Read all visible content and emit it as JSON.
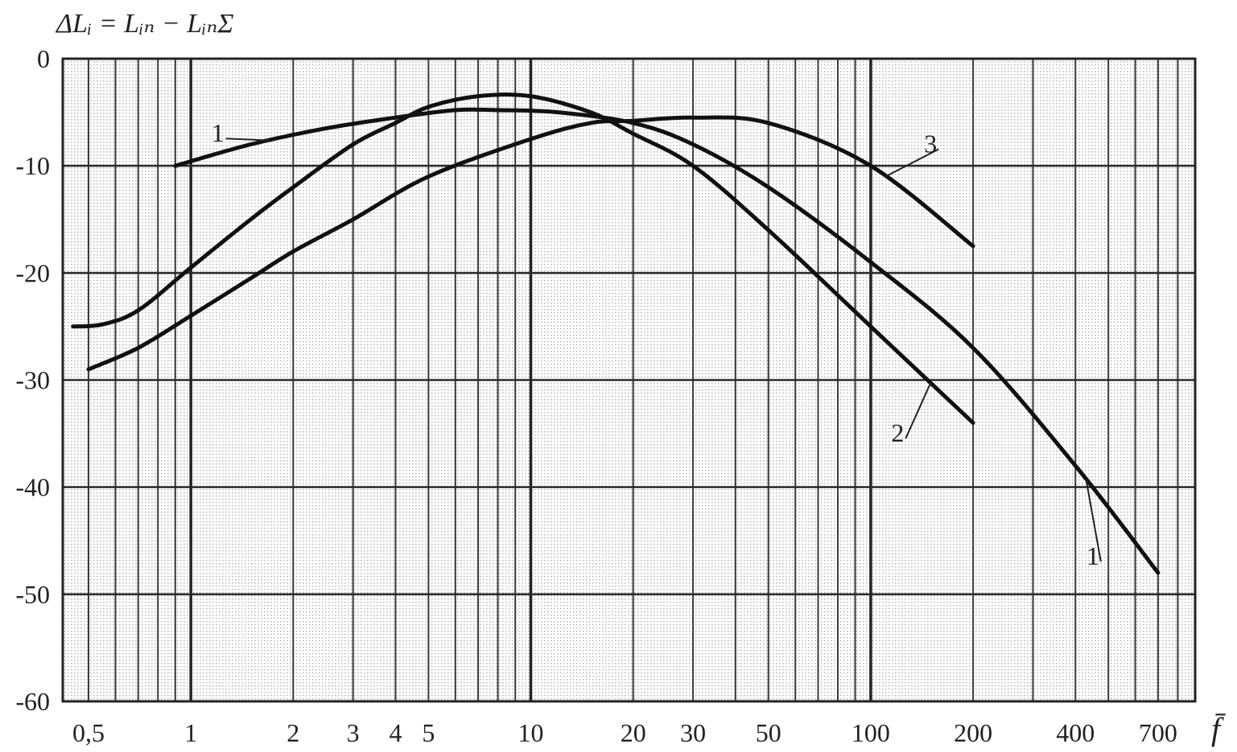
{
  "chart_data": {
    "type": "line",
    "ylabel": "ΔLᵢ = Lᵢₙ − LᵢₙΣ",
    "xlabel": "f̄",
    "x_scale": "log",
    "xlim": [
      0.42,
      900
    ],
    "ylim": [
      -60,
      0
    ],
    "grid": true,
    "x_ticks": [
      {
        "value": 0.5,
        "label": "0,5"
      },
      {
        "value": 1,
        "label": "1"
      },
      {
        "value": 2,
        "label": "2"
      },
      {
        "value": 3,
        "label": "3"
      },
      {
        "value": 4,
        "label": "4"
      },
      {
        "value": 5,
        "label": "5"
      },
      {
        "value": 10,
        "label": "10"
      },
      {
        "value": 20,
        "label": "20"
      },
      {
        "value": 30,
        "label": "30"
      },
      {
        "value": 50,
        "label": "50"
      },
      {
        "value": 100,
        "label": "100"
      },
      {
        "value": 200,
        "label": "200"
      },
      {
        "value": 400,
        "label": "400"
      },
      {
        "value": 700,
        "label": "700"
      }
    ],
    "y_ticks": [
      {
        "value": 0,
        "label": "0"
      },
      {
        "value": -10,
        "label": "-10"
      },
      {
        "value": -20,
        "label": "-20"
      },
      {
        "value": -30,
        "label": "-30"
      },
      {
        "value": -40,
        "label": "-40"
      },
      {
        "value": -50,
        "label": "-50"
      },
      {
        "value": -60,
        "label": "-60"
      }
    ],
    "series": [
      {
        "name": "1",
        "x": [
          0.9,
          1.5,
          2.5,
          4,
          6,
          8,
          12,
          20,
          30,
          50,
          100,
          200,
          400,
          700
        ],
        "y": [
          -10,
          -8,
          -6.5,
          -5.5,
          -4.8,
          -4.8,
          -5,
          -6,
          -8,
          -12,
          -19,
          -27,
          -38,
          -48
        ]
      },
      {
        "name": "2",
        "x": [
          0.45,
          0.55,
          0.7,
          1,
          1.5,
          2,
          3,
          4,
          5,
          7,
          10,
          15,
          20,
          30,
          50,
          100,
          200
        ],
        "y": [
          -25,
          -24.8,
          -23.5,
          -19.5,
          -15,
          -12,
          -8,
          -6,
          -4.5,
          -3.5,
          -3.5,
          -5,
          -7,
          -10,
          -16,
          -25,
          -34
        ]
      },
      {
        "name": "3",
        "x": [
          0.5,
          0.7,
          1,
          1.5,
          2,
          3,
          5,
          10,
          15,
          20,
          30,
          50,
          100,
          200
        ],
        "y": [
          -29,
          -27,
          -24,
          -20.5,
          -18,
          -15,
          -11,
          -7.5,
          -6,
          -5.8,
          -5.5,
          -6,
          -10,
          -17.5
        ]
      }
    ],
    "curve_labels": [
      {
        "text": "1",
        "series": "1",
        "at_x": 1.2,
        "at_y": -7
      },
      {
        "text": "1",
        "series": "1",
        "at_x": 450,
        "at_y": -46.5
      },
      {
        "text": "2",
        "series": "2",
        "at_x": 120,
        "at_y": -35
      },
      {
        "text": "3",
        "series": "3",
        "at_x": 150,
        "at_y": -8
      }
    ]
  }
}
